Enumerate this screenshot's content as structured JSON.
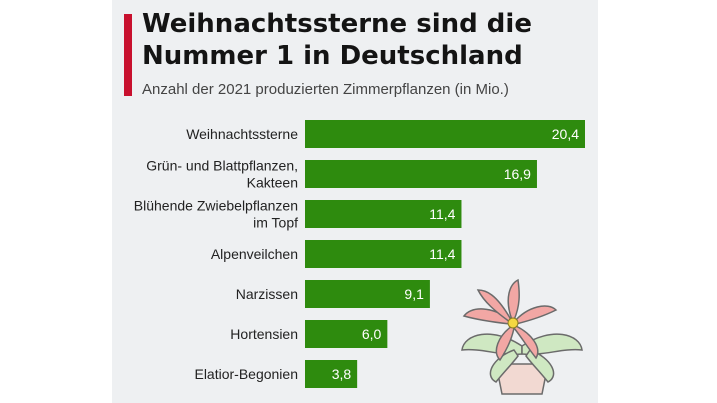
{
  "header": {
    "title": "Weihnachtssterne sind die Nummer 1 in Deutschland",
    "subtitle": "Anzahl der 2021 produzierten Zimmerpflanzen (in Mio.)"
  },
  "colors": {
    "bar": "#2e8b0e",
    "accent": "#c8102e",
    "panel": "#eef0f2"
  },
  "chart_data": {
    "type": "bar",
    "orientation": "horizontal",
    "title": "Weihnachtssterne sind die Nummer 1 in Deutschland",
    "subtitle": "Anzahl der 2021 produzierten Zimmerpflanzen (in Mio.)",
    "xlabel": "",
    "ylabel": "",
    "xlim": [
      0,
      20.4
    ],
    "grid": false,
    "categories": [
      [
        "Weihnachtssterne"
      ],
      [
        "Grün- und Blattpflanzen,",
        "Kakteen"
      ],
      [
        "Blühende Zwiebelpflanzen",
        "im Topf"
      ],
      [
        "Alpenveilchen"
      ],
      [
        "Narzissen"
      ],
      [
        "Hortensien"
      ],
      [
        "Elatior-Begonien"
      ]
    ],
    "values": [
      20.4,
      16.9,
      11.4,
      11.4,
      9.1,
      6.0,
      3.8
    ],
    "value_labels": [
      "20,4",
      "16,9",
      "11,4",
      "11,4",
      "9,1",
      "6,0",
      "3,8"
    ]
  },
  "decoration": {
    "icon": "poinsettia-plant-icon"
  }
}
